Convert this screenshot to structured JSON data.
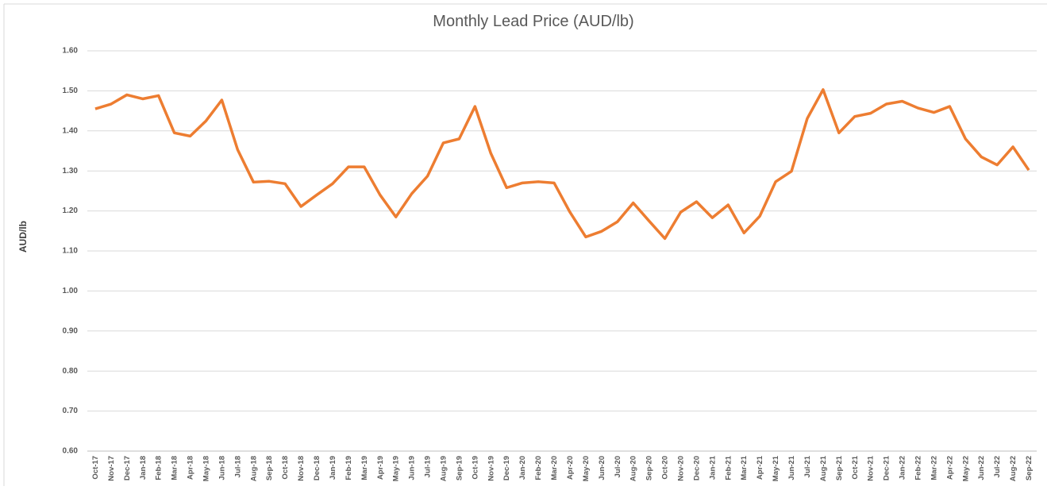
{
  "chart_data": {
    "type": "line",
    "title": "Monthly Lead Price (AUD/lb)",
    "y_label": "AUD/lb",
    "categories": [
      "Oct-17",
      "Nov-17",
      "Dec-17",
      "Jan-18",
      "Feb-18",
      "Mar-18",
      "Apr-18",
      "May-18",
      "Jun-18",
      "Jul-18",
      "Aug-18",
      "Sep-18",
      "Oct-18",
      "Nov-18",
      "Dec-18",
      "Jan-19",
      "Feb-19",
      "Mar-19",
      "Apr-19",
      "May-19",
      "Jun-19",
      "Jul-19",
      "Aug-19",
      "Sep-19",
      "Oct-19",
      "Nov-19",
      "Dec-19",
      "Jan-20",
      "Feb-20",
      "Mar-20",
      "Apr-20",
      "May-20",
      "Jun-20",
      "Jul-20",
      "Aug-20",
      "Sep-20",
      "Oct-20",
      "Nov-20",
      "Dec-20",
      "Jan-21",
      "Feb-21",
      "Mar-21",
      "Apr-21",
      "May-21",
      "Jun-21",
      "Jul-21",
      "Aug-21",
      "Sep-21",
      "Oct-21",
      "Nov-21",
      "Dec-21",
      "Jan-22",
      "Feb-22",
      "Mar-22",
      "Apr-22",
      "May-22",
      "Jun-22",
      "Jul-22",
      "Aug-22",
      "Sep-22"
    ],
    "values": [
      1.455,
      1.467,
      1.49,
      1.48,
      1.488,
      1.395,
      1.387,
      1.425,
      1.477,
      1.353,
      1.272,
      1.274,
      1.268,
      1.211,
      1.24,
      1.268,
      1.31,
      1.31,
      1.24,
      1.185,
      1.243,
      1.287,
      1.37,
      1.38,
      1.461,
      1.344,
      1.258,
      1.27,
      1.273,
      1.27,
      1.197,
      1.135,
      1.149,
      1.173,
      1.22,
      1.175,
      1.131,
      1.197,
      1.223,
      1.183,
      1.215,
      1.145,
      1.187,
      1.273,
      1.299,
      1.431,
      1.503,
      1.395,
      1.436,
      1.444,
      1.467,
      1.474,
      1.457,
      1.446,
      1.461,
      1.38,
      1.335,
      1.315,
      1.36,
      1.302
    ],
    "color": "#ed7d31",
    "ylim": [
      0.6,
      1.6
    ],
    "yticks": [
      {
        "value": 0.6,
        "label": "0.60"
      },
      {
        "value": 0.7,
        "label": "0.70"
      },
      {
        "value": 0.8,
        "label": "0.80"
      },
      {
        "value": 0.9,
        "label": "0.90"
      },
      {
        "value": 1,
        "label": "1.00"
      },
      {
        "value": 1.1,
        "label": "1.10"
      },
      {
        "value": 1.2,
        "label": "1.20"
      },
      {
        "value": 1.3,
        "label": "1.30"
      },
      {
        "value": 1.4,
        "label": "1.40"
      },
      {
        "value": 1.5,
        "label": "1.50"
      },
      {
        "value": 1.6,
        "label": "1.60"
      }
    ],
    "grid": true
  }
}
